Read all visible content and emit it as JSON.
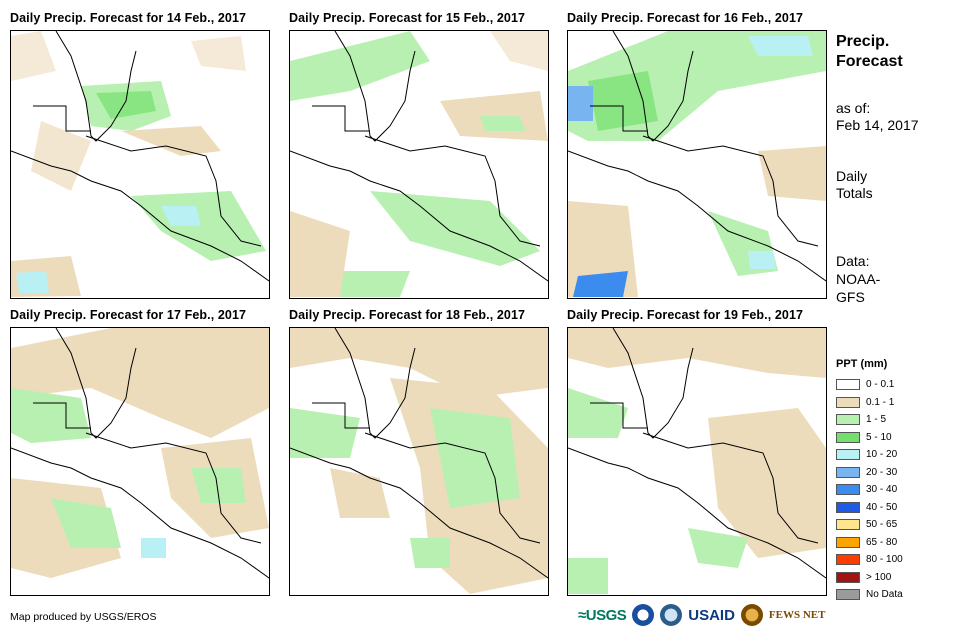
{
  "panels": [
    {
      "title": "Daily Precip. Forecast for 14 Feb., 2017"
    },
    {
      "title": "Daily Precip. Forecast for 15 Feb., 2017"
    },
    {
      "title": "Daily Precip. Forecast for 16 Feb., 2017"
    },
    {
      "title": "Daily Precip. Forecast for 17 Feb., 2017"
    },
    {
      "title": "Daily Precip. Forecast for 18 Feb., 2017"
    },
    {
      "title": "Daily Precip. Forecast for 19 Feb., 2017"
    }
  ],
  "side": {
    "title_line1": "Precip.",
    "title_line2": "Forecast",
    "asof_label": "as of:",
    "asof_date": "Feb 14, 2017",
    "totals_line1": "Daily",
    "totals_line2": "Totals",
    "data_line1": "Data:",
    "data_line2": "NOAA-",
    "data_line3": "GFS"
  },
  "legend": {
    "title": "PPT (mm)",
    "items": [
      {
        "label": "0 - 0.1",
        "color": "#ffffff"
      },
      {
        "label": "0.1 - 1",
        "color": "#eddcbc"
      },
      {
        "label": "1 - 5",
        "color": "#b7f0b0"
      },
      {
        "label": "5 - 10",
        "color": "#73e06e"
      },
      {
        "label": "10 - 20",
        "color": "#b8f0f4"
      },
      {
        "label": "20 - 30",
        "color": "#78b4f0"
      },
      {
        "label": "30 - 40",
        "color": "#3c8cf0"
      },
      {
        "label": "40 - 50",
        "color": "#1e5ae6"
      },
      {
        "label": "50 - 65",
        "color": "#ffe68c"
      },
      {
        "label": "65 - 80",
        "color": "#ffa500"
      },
      {
        "label": "80 - 100",
        "color": "#ff3c00"
      },
      {
        "label": "> 100",
        "color": "#a01414"
      },
      {
        "label": "No Data",
        "color": "#9b9b9b"
      }
    ]
  },
  "footer": {
    "credit": "Map produced by USGS/EROS"
  },
  "logos": {
    "usgs": "USGS",
    "usaid": "USAID",
    "fews": "FEWS NET"
  }
}
